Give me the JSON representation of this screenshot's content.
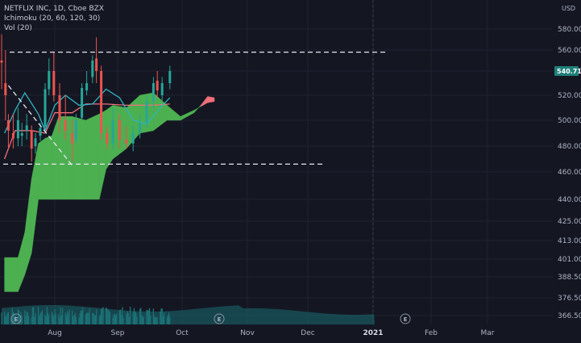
{
  "legend": {
    "symbol": "NETFLIX INC, 1D, Cboe BZX",
    "ichimoku": "Ichimoku (20, 60, 120, 30)",
    "volume": "Vol (20)"
  },
  "chart_data": {
    "type": "candlestick",
    "currency_label": "USD",
    "last_price_label": "540.71",
    "y_ticks": [
      {
        "v": 580.0,
        "label": "580.00"
      },
      {
        "v": 560.0,
        "label": "560.00"
      },
      {
        "v": 540.0,
        "label": "540.00"
      },
      {
        "v": 520.0,
        "label": "520.00"
      },
      {
        "v": 500.0,
        "label": "500.00"
      },
      {
        "v": 480.0,
        "label": "480.00"
      },
      {
        "v": 460.0,
        "label": "460.00"
      },
      {
        "v": 440.0,
        "label": "440.00"
      },
      {
        "v": 425.0,
        "label": "425.00"
      },
      {
        "v": 413.0,
        "label": "413.00"
      },
      {
        "v": 401.0,
        "label": "401.00"
      },
      {
        "v": 388.5,
        "label": "388.50"
      },
      {
        "v": 376.5,
        "label": "376.50"
      },
      {
        "v": 366.5,
        "label": "366.50"
      }
    ],
    "x_ticks": [
      {
        "label": "Aug",
        "bold": false
      },
      {
        "label": "Sep",
        "bold": false
      },
      {
        "label": "Oct",
        "bold": false
      },
      {
        "label": "Nov",
        "bold": false
      },
      {
        "label": "Dec",
        "bold": false
      },
      {
        "label": "2021",
        "bold": true
      },
      {
        "label": "Feb",
        "bold": false
      },
      {
        "label": "Mar",
        "bold": false
      }
    ],
    "event_markers": [
      "E",
      "E",
      "E"
    ],
    "colors": {
      "up": "#26a69a",
      "down": "#ef5350",
      "cloud_bull": "#4caf50",
      "cloud_bear": "#ef6f7a",
      "conversion": "#2fb3c4",
      "base": "#ef6f7a",
      "volume": "#1e7a7a"
    },
    "horizontal_levels": [
      558,
      466
    ],
    "trendline": {
      "from": {
        "date": "2020-07-17",
        "price": 528
      },
      "to": {
        "date": "2020-09-21",
        "price": 465
      }
    },
    "cloud": [
      {
        "date": "2020-07-13",
        "a": 402,
        "b": 380
      },
      {
        "date": "2020-07-27",
        "a": 402,
        "b": 380
      },
      {
        "date": "2020-08-03",
        "a": 418,
        "b": 390
      },
      {
        "date": "2020-08-10",
        "a": 455,
        "b": 405
      },
      {
        "date": "2020-08-17",
        "a": 482,
        "b": 440
      },
      {
        "date": "2020-08-24",
        "a": 486,
        "b": 440
      },
      {
        "date": "2020-08-31",
        "a": 488,
        "b": 440
      },
      {
        "date": "2020-09-07",
        "a": 503,
        "b": 440
      },
      {
        "date": "2020-09-21",
        "a": 503,
        "b": 440
      },
      {
        "date": "2020-10-05",
        "a": 500,
        "b": 440
      },
      {
        "date": "2020-10-19",
        "a": 505,
        "b": 440
      },
      {
        "date": "2020-10-26",
        "a": 508,
        "b": 462
      },
      {
        "date": "2020-11-02",
        "a": 512,
        "b": 470
      },
      {
        "date": "2020-11-16",
        "a": 510,
        "b": 478
      },
      {
        "date": "2020-11-30",
        "a": 520,
        "b": 490
      },
      {
        "date": "2020-12-14",
        "a": 522,
        "b": 492
      },
      {
        "date": "2020-12-28",
        "a": 512,
        "b": 500
      },
      {
        "date": "2021-01-11",
        "a": 503,
        "b": 500
      },
      {
        "date": "2021-01-25",
        "a": 508,
        "b": 506
      },
      {
        "date": "2021-02-01",
        "a": 511,
        "b": 512
      },
      {
        "date": "2021-02-08",
        "a": 514,
        "b": 519
      },
      {
        "date": "2021-02-15",
        "a": 515,
        "b": 518
      }
    ],
    "conversion_line": [
      {
        "date": "2020-07-13",
        "v": 490
      },
      {
        "date": "2020-07-24",
        "v": 508
      },
      {
        "date": "2020-08-03",
        "v": 522
      },
      {
        "date": "2020-08-17",
        "v": 505
      },
      {
        "date": "2020-08-24",
        "v": 492
      },
      {
        "date": "2020-09-03",
        "v": 512
      },
      {
        "date": "2020-09-14",
        "v": 520
      },
      {
        "date": "2020-09-28",
        "v": 512
      },
      {
        "date": "2020-10-12",
        "v": 513
      },
      {
        "date": "2020-10-26",
        "v": 525
      },
      {
        "date": "2020-11-09",
        "v": 518
      },
      {
        "date": "2020-11-23",
        "v": 500
      },
      {
        "date": "2020-12-07",
        "v": 497
      },
      {
        "date": "2020-12-21",
        "v": 510
      },
      {
        "date": "2020-12-31",
        "v": 518
      }
    ],
    "base_line": [
      {
        "date": "2020-07-13",
        "v": 470
      },
      {
        "date": "2020-07-24",
        "v": 492
      },
      {
        "date": "2020-08-10",
        "v": 492
      },
      {
        "date": "2020-08-24",
        "v": 490
      },
      {
        "date": "2020-09-03",
        "v": 506
      },
      {
        "date": "2020-09-21",
        "v": 506
      },
      {
        "date": "2020-10-05",
        "v": 513
      },
      {
        "date": "2020-10-26",
        "v": 513
      },
      {
        "date": "2020-11-16",
        "v": 512
      },
      {
        "date": "2020-12-14",
        "v": 512
      },
      {
        "date": "2020-12-31",
        "v": 513
      }
    ],
    "candles": [
      {
        "date": "2020-07-10",
        "o": 550,
        "h": 575,
        "l": 525,
        "c": 548
      },
      {
        "date": "2020-07-14",
        "o": 530,
        "h": 560,
        "l": 500,
        "c": 520
      },
      {
        "date": "2020-07-17",
        "o": 500,
        "h": 505,
        "l": 478,
        "c": 492
      },
      {
        "date": "2020-07-22",
        "o": 490,
        "h": 505,
        "l": 478,
        "c": 486
      },
      {
        "date": "2020-07-27",
        "o": 486,
        "h": 510,
        "l": 480,
        "c": 500
      },
      {
        "date": "2020-07-31",
        "o": 488,
        "h": 498,
        "l": 480,
        "c": 490
      },
      {
        "date": "2020-08-05",
        "o": 492,
        "h": 505,
        "l": 485,
        "c": 496
      },
      {
        "date": "2020-08-10",
        "o": 492,
        "h": 496,
        "l": 468,
        "c": 478
      },
      {
        "date": "2020-08-14",
        "o": 480,
        "h": 490,
        "l": 474,
        "c": 486
      },
      {
        "date": "2020-08-19",
        "o": 488,
        "h": 498,
        "l": 484,
        "c": 494
      },
      {
        "date": "2020-08-24",
        "o": 495,
        "h": 530,
        "l": 490,
        "c": 525
      },
      {
        "date": "2020-08-28",
        "o": 525,
        "h": 552,
        "l": 520,
        "c": 540
      },
      {
        "date": "2020-09-02",
        "o": 540,
        "h": 558,
        "l": 515,
        "c": 520
      },
      {
        "date": "2020-09-08",
        "o": 520,
        "h": 530,
        "l": 490,
        "c": 500
      },
      {
        "date": "2020-09-14",
        "o": 500,
        "h": 520,
        "l": 485,
        "c": 492
      },
      {
        "date": "2020-09-21",
        "o": 490,
        "h": 500,
        "l": 468,
        "c": 482
      },
      {
        "date": "2020-09-25",
        "o": 485,
        "h": 505,
        "l": 482,
        "c": 500
      },
      {
        "date": "2020-10-01",
        "o": 502,
        "h": 530,
        "l": 500,
        "c": 526
      },
      {
        "date": "2020-10-06",
        "o": 524,
        "h": 540,
        "l": 520,
        "c": 530
      },
      {
        "date": "2020-10-12",
        "o": 535,
        "h": 555,
        "l": 530,
        "c": 550
      },
      {
        "date": "2020-10-16",
        "o": 552,
        "h": 572,
        "l": 530,
        "c": 540
      },
      {
        "date": "2020-10-21",
        "o": 540,
        "h": 545,
        "l": 485,
        "c": 490
      },
      {
        "date": "2020-10-27",
        "o": 490,
        "h": 495,
        "l": 478,
        "c": 482
      },
      {
        "date": "2020-11-02",
        "o": 482,
        "h": 510,
        "l": 478,
        "c": 500
      },
      {
        "date": "2020-11-09",
        "o": 500,
        "h": 505,
        "l": 478,
        "c": 485
      },
      {
        "date": "2020-11-16",
        "o": 485,
        "h": 495,
        "l": 478,
        "c": 482
      },
      {
        "date": "2020-11-23",
        "o": 482,
        "h": 496,
        "l": 476,
        "c": 490
      },
      {
        "date": "2020-11-30",
        "o": 490,
        "h": 505,
        "l": 486,
        "c": 498
      },
      {
        "date": "2020-12-07",
        "o": 498,
        "h": 520,
        "l": 494,
        "c": 515
      },
      {
        "date": "2020-12-14",
        "o": 515,
        "h": 535,
        "l": 510,
        "c": 530
      },
      {
        "date": "2020-12-18",
        "o": 532,
        "h": 540,
        "l": 518,
        "c": 524
      },
      {
        "date": "2020-12-23",
        "o": 520,
        "h": 535,
        "l": 515,
        "c": 530
      },
      {
        "date": "2020-12-31",
        "o": 530,
        "h": 545,
        "l": 525,
        "c": 540
      }
    ]
  }
}
